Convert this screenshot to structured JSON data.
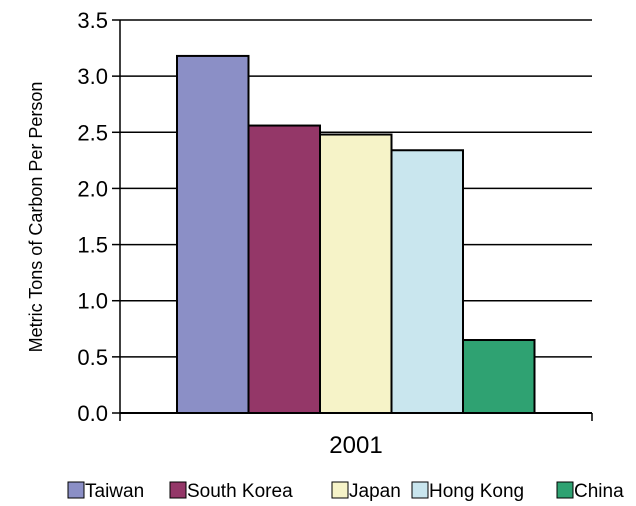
{
  "chart_data": {
    "type": "bar",
    "categories": [
      "2001"
    ],
    "series": [
      {
        "name": "Taiwan",
        "values": [
          3.18
        ],
        "color": "#8b8fc6"
      },
      {
        "name": "South Korea",
        "values": [
          2.56
        ],
        "color": "#943768"
      },
      {
        "name": "Japan",
        "values": [
          2.48
        ],
        "color": "#f6f3c8"
      },
      {
        "name": "Hong Kong",
        "values": [
          2.34
        ],
        "color": "#c9e6ee"
      },
      {
        "name": "China",
        "values": [
          0.65
        ],
        "color": "#2fa272"
      }
    ],
    "title": "",
    "xlabel": "",
    "ylabel": "Metric Tons of Carbon Per Person",
    "ylim": [
      0,
      3.5
    ],
    "yticks": [
      "0.0",
      "0.5",
      "1.0",
      "1.5",
      "2.0",
      "2.5",
      "3.0",
      "3.5"
    ],
    "grid": true,
    "legend_position": "bottom"
  }
}
